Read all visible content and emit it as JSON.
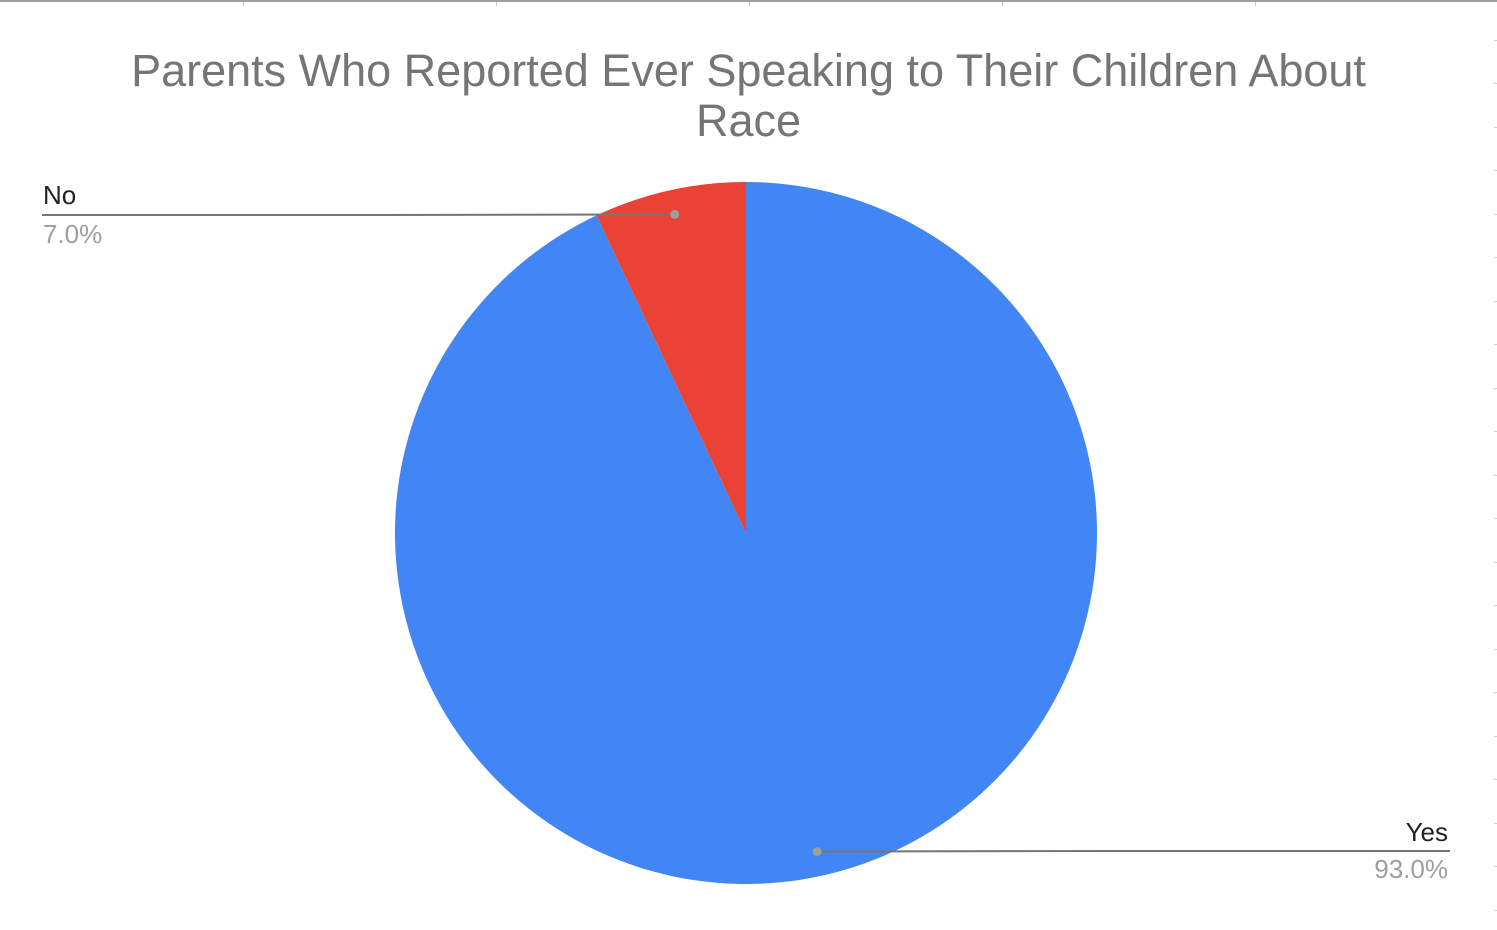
{
  "chart_data": {
    "type": "pie",
    "title": "Parents Who Reported Ever Speaking to Their Children About Race",
    "title_lines": [
      "Parents Who Reported Ever Speaking to Their Children About",
      "Race"
    ],
    "slices": [
      {
        "label": "Yes",
        "value": 93.0,
        "value_label": "93.0%",
        "color": "#4285f4"
      },
      {
        "label": "No",
        "value": 7.0,
        "value_label": "7.0%",
        "color": "#ea4335"
      }
    ],
    "start_angle": "12 o'clock",
    "direction": "clockwise",
    "legend": "none",
    "label_style": "leader-lines"
  }
}
